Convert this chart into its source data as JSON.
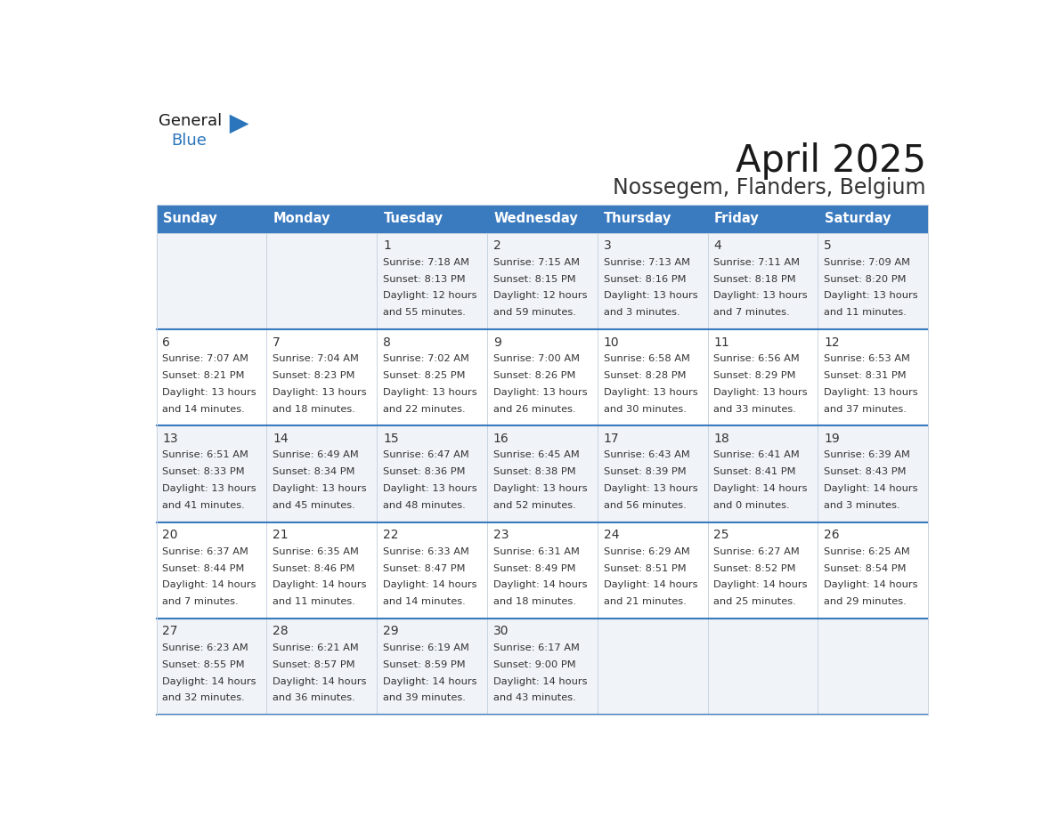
{
  "title": "April 2025",
  "subtitle": "Nossegem, Flanders, Belgium",
  "header_bg": "#3a7abf",
  "header_text": "#ffffff",
  "row_bg_light": "#f0f3f7",
  "row_bg_white": "#ffffff",
  "row_divider_color": "#3a7abf",
  "cell_border_color": "#c8d4e0",
  "day_names": [
    "Sunday",
    "Monday",
    "Tuesday",
    "Wednesday",
    "Thursday",
    "Friday",
    "Saturday"
  ],
  "days": [
    {
      "day": 1,
      "col": 2,
      "row": 0,
      "sunrise": "7:18 AM",
      "sunset": "8:13 PM",
      "daylight_h": "12 hours",
      "daylight_m": "55 minutes"
    },
    {
      "day": 2,
      "col": 3,
      "row": 0,
      "sunrise": "7:15 AM",
      "sunset": "8:15 PM",
      "daylight_h": "12 hours",
      "daylight_m": "59 minutes"
    },
    {
      "day": 3,
      "col": 4,
      "row": 0,
      "sunrise": "7:13 AM",
      "sunset": "8:16 PM",
      "daylight_h": "13 hours",
      "daylight_m": "3 minutes"
    },
    {
      "day": 4,
      "col": 5,
      "row": 0,
      "sunrise": "7:11 AM",
      "sunset": "8:18 PM",
      "daylight_h": "13 hours",
      "daylight_m": "7 minutes"
    },
    {
      "day": 5,
      "col": 6,
      "row": 0,
      "sunrise": "7:09 AM",
      "sunset": "8:20 PM",
      "daylight_h": "13 hours",
      "daylight_m": "11 minutes"
    },
    {
      "day": 6,
      "col": 0,
      "row": 1,
      "sunrise": "7:07 AM",
      "sunset": "8:21 PM",
      "daylight_h": "13 hours",
      "daylight_m": "14 minutes"
    },
    {
      "day": 7,
      "col": 1,
      "row": 1,
      "sunrise": "7:04 AM",
      "sunset": "8:23 PM",
      "daylight_h": "13 hours",
      "daylight_m": "18 minutes"
    },
    {
      "day": 8,
      "col": 2,
      "row": 1,
      "sunrise": "7:02 AM",
      "sunset": "8:25 PM",
      "daylight_h": "13 hours",
      "daylight_m": "22 minutes"
    },
    {
      "day": 9,
      "col": 3,
      "row": 1,
      "sunrise": "7:00 AM",
      "sunset": "8:26 PM",
      "daylight_h": "13 hours",
      "daylight_m": "26 minutes"
    },
    {
      "day": 10,
      "col": 4,
      "row": 1,
      "sunrise": "6:58 AM",
      "sunset": "8:28 PM",
      "daylight_h": "13 hours",
      "daylight_m": "30 minutes"
    },
    {
      "day": 11,
      "col": 5,
      "row": 1,
      "sunrise": "6:56 AM",
      "sunset": "8:29 PM",
      "daylight_h": "13 hours",
      "daylight_m": "33 minutes"
    },
    {
      "day": 12,
      "col": 6,
      "row": 1,
      "sunrise": "6:53 AM",
      "sunset": "8:31 PM",
      "daylight_h": "13 hours",
      "daylight_m": "37 minutes"
    },
    {
      "day": 13,
      "col": 0,
      "row": 2,
      "sunrise": "6:51 AM",
      "sunset": "8:33 PM",
      "daylight_h": "13 hours",
      "daylight_m": "41 minutes"
    },
    {
      "day": 14,
      "col": 1,
      "row": 2,
      "sunrise": "6:49 AM",
      "sunset": "8:34 PM",
      "daylight_h": "13 hours",
      "daylight_m": "45 minutes"
    },
    {
      "day": 15,
      "col": 2,
      "row": 2,
      "sunrise": "6:47 AM",
      "sunset": "8:36 PM",
      "daylight_h": "13 hours",
      "daylight_m": "48 minutes"
    },
    {
      "day": 16,
      "col": 3,
      "row": 2,
      "sunrise": "6:45 AM",
      "sunset": "8:38 PM",
      "daylight_h": "13 hours",
      "daylight_m": "52 minutes"
    },
    {
      "day": 17,
      "col": 4,
      "row": 2,
      "sunrise": "6:43 AM",
      "sunset": "8:39 PM",
      "daylight_h": "13 hours",
      "daylight_m": "56 minutes"
    },
    {
      "day": 18,
      "col": 5,
      "row": 2,
      "sunrise": "6:41 AM",
      "sunset": "8:41 PM",
      "daylight_h": "14 hours",
      "daylight_m": "0 minutes"
    },
    {
      "day": 19,
      "col": 6,
      "row": 2,
      "sunrise": "6:39 AM",
      "sunset": "8:43 PM",
      "daylight_h": "14 hours",
      "daylight_m": "3 minutes"
    },
    {
      "day": 20,
      "col": 0,
      "row": 3,
      "sunrise": "6:37 AM",
      "sunset": "8:44 PM",
      "daylight_h": "14 hours",
      "daylight_m": "7 minutes"
    },
    {
      "day": 21,
      "col": 1,
      "row": 3,
      "sunrise": "6:35 AM",
      "sunset": "8:46 PM",
      "daylight_h": "14 hours",
      "daylight_m": "11 minutes"
    },
    {
      "day": 22,
      "col": 2,
      "row": 3,
      "sunrise": "6:33 AM",
      "sunset": "8:47 PM",
      "daylight_h": "14 hours",
      "daylight_m": "14 minutes"
    },
    {
      "day": 23,
      "col": 3,
      "row": 3,
      "sunrise": "6:31 AM",
      "sunset": "8:49 PM",
      "daylight_h": "14 hours",
      "daylight_m": "18 minutes"
    },
    {
      "day": 24,
      "col": 4,
      "row": 3,
      "sunrise": "6:29 AM",
      "sunset": "8:51 PM",
      "daylight_h": "14 hours",
      "daylight_m": "21 minutes"
    },
    {
      "day": 25,
      "col": 5,
      "row": 3,
      "sunrise": "6:27 AM",
      "sunset": "8:52 PM",
      "daylight_h": "14 hours",
      "daylight_m": "25 minutes"
    },
    {
      "day": 26,
      "col": 6,
      "row": 3,
      "sunrise": "6:25 AM",
      "sunset": "8:54 PM",
      "daylight_h": "14 hours",
      "daylight_m": "29 minutes"
    },
    {
      "day": 27,
      "col": 0,
      "row": 4,
      "sunrise": "6:23 AM",
      "sunset": "8:55 PM",
      "daylight_h": "14 hours",
      "daylight_m": "32 minutes"
    },
    {
      "day": 28,
      "col": 1,
      "row": 4,
      "sunrise": "6:21 AM",
      "sunset": "8:57 PM",
      "daylight_h": "14 hours",
      "daylight_m": "36 minutes"
    },
    {
      "day": 29,
      "col": 2,
      "row": 4,
      "sunrise": "6:19 AM",
      "sunset": "8:59 PM",
      "daylight_h": "14 hours",
      "daylight_m": "39 minutes"
    },
    {
      "day": 30,
      "col": 3,
      "row": 4,
      "sunrise": "6:17 AM",
      "sunset": "9:00 PM",
      "daylight_h": "14 hours",
      "daylight_m": "43 minutes"
    }
  ],
  "num_rows": 5,
  "num_cols": 7,
  "logo_color1": "#1a1a1a",
  "logo_color2": "#2a75bb",
  "triangle_color": "#2a75bb",
  "text_color": "#333333",
  "title_color": "#1a1a1a",
  "subtitle_color": "#333333",
  "number_fontsize": 10,
  "content_fontsize": 8.2,
  "header_fontsize": 10.5,
  "title_fontsize": 30,
  "subtitle_fontsize": 17
}
